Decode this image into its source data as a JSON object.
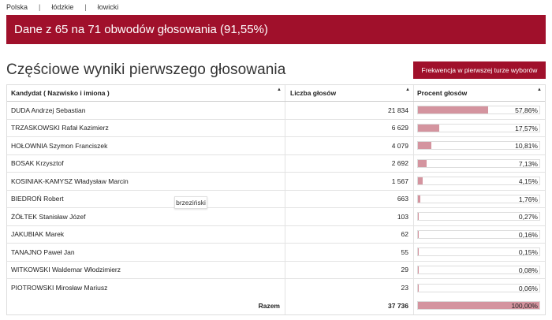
{
  "breadcrumb": [
    "Polska",
    "łódzkie",
    "łowicki"
  ],
  "banner": {
    "text": "Dane z 65 na 71 obwodów głosowania (91,55%)"
  },
  "section": {
    "title": "Częściowe wyniki pierwszego głosowania",
    "turnout_button": "Frekwencja w pierwszej turze wyborów"
  },
  "table": {
    "headers": {
      "name": "Kandydat ( Nazwisko i imiona )",
      "votes": "Liczba głosów",
      "pct": "Procent głosów"
    },
    "rows": [
      {
        "name": "DUDA Andrzej Sebastian",
        "votes": "21 834",
        "pct": "57,86%",
        "fraction": 0.5786
      },
      {
        "name": "TRZASKOWSKI Rafał Kazimierz",
        "votes": "6 629",
        "pct": "17,57%",
        "fraction": 0.1757
      },
      {
        "name": "HOŁOWNIA Szymon Franciszek",
        "votes": "4 079",
        "pct": "10,81%",
        "fraction": 0.1081
      },
      {
        "name": "BOSAK Krzysztof",
        "votes": "2 692",
        "pct": "7,13%",
        "fraction": 0.0713
      },
      {
        "name": "KOSINIAK-KAMYSZ Władysław Marcin",
        "votes": "1 567",
        "pct": "4,15%",
        "fraction": 0.0415
      },
      {
        "name": "BIEDROŃ Robert",
        "votes": "663",
        "pct": "1,76%",
        "fraction": 0.0176
      },
      {
        "name": "ŻÓŁTEK Stanisław Józef",
        "votes": "103",
        "pct": "0,27%",
        "fraction": 0.0027
      },
      {
        "name": "JAKUBIAK Marek",
        "votes": "62",
        "pct": "0,16%",
        "fraction": 0.0016
      },
      {
        "name": "TANAJNO Paweł Jan",
        "votes": "55",
        "pct": "0,15%",
        "fraction": 0.0015
      },
      {
        "name": "WITKOWSKI Waldemar Włodzimierz",
        "votes": "29",
        "pct": "0,08%",
        "fraction": 0.0008
      },
      {
        "name": "PIOTROWSKI Mirosław Mariusz",
        "votes": "23",
        "pct": "0,06%",
        "fraction": 0.0006
      }
    ],
    "total": {
      "label": "Razem",
      "votes": "37 736",
      "pct": "100,00%",
      "fraction": 1.0
    }
  },
  "tooltip": {
    "text": "brzeziński"
  },
  "colors": {
    "accent": "#a0102b",
    "bar": "#d4949f"
  }
}
